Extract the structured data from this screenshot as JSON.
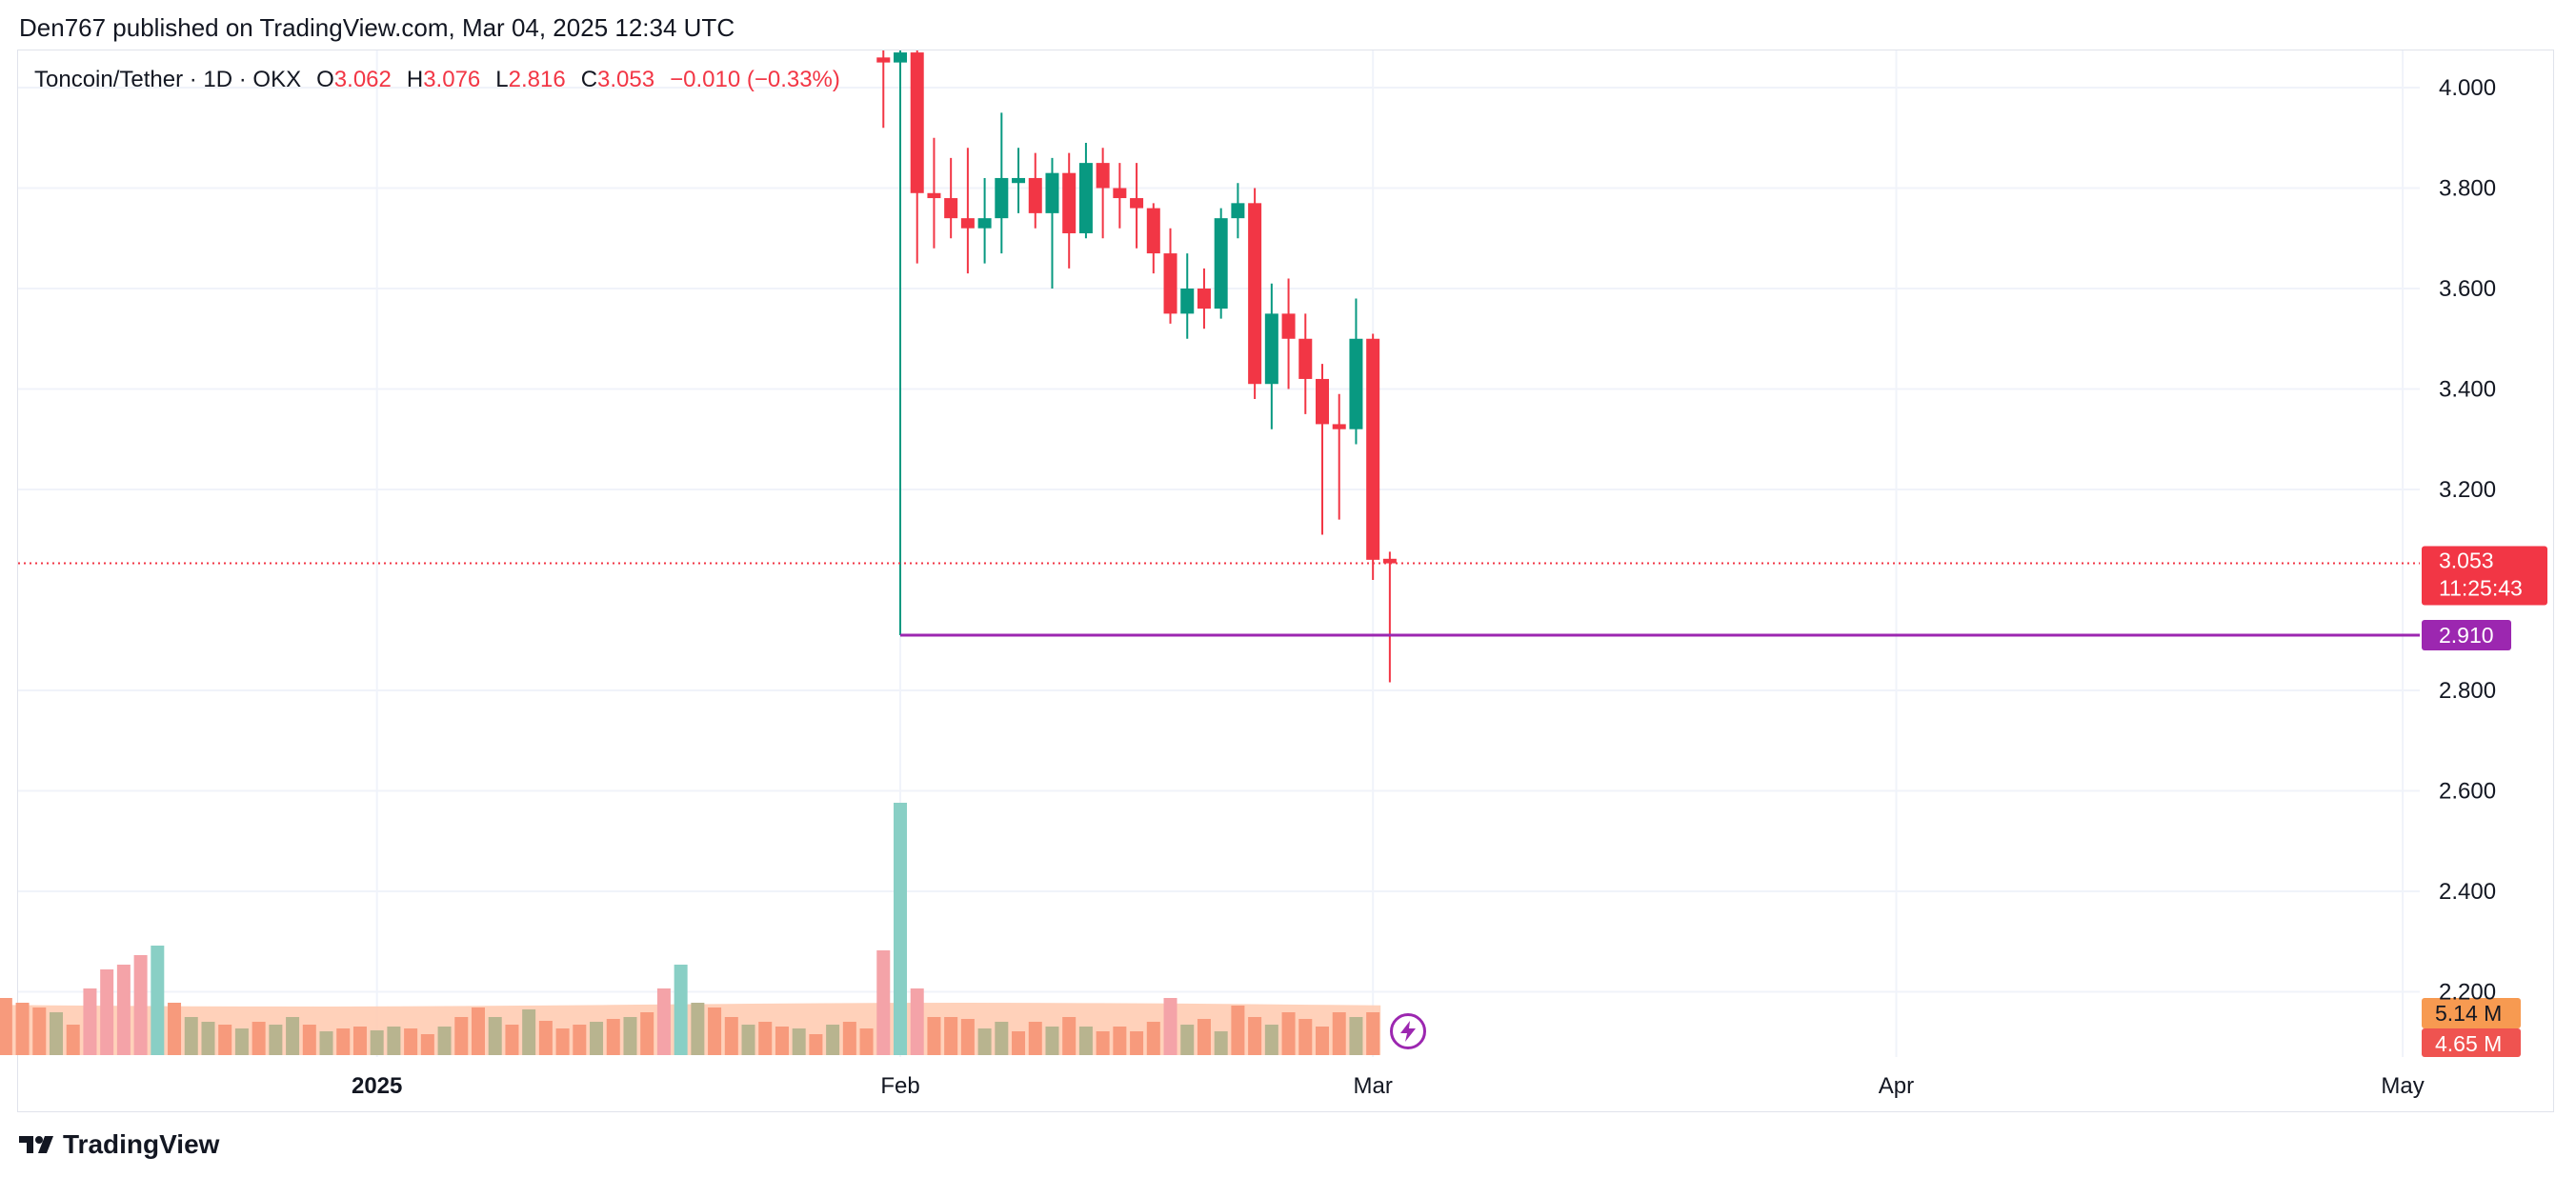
{
  "header": {
    "published_by": "Den767 published on TradingView.com, Mar 04, 2025 12:34 UTC"
  },
  "legend": {
    "symbol": "Toncoin/Tether · 1D · OKX",
    "open_label": "O",
    "open_value": "3.062",
    "high_label": "H",
    "high_value": "3.076",
    "low_label": "L",
    "low_value": "2.816",
    "close_label": "C",
    "close_value": "3.053",
    "change": "−0.010 (−0.33%)"
  },
  "footer": {
    "brand": "TradingView"
  },
  "colors": {
    "up": "#089981",
    "down": "#f23645",
    "level_line": "#9c27b0",
    "volume_ma": "#ffccb3",
    "grid": "#f0f3fa"
  },
  "chart_data": {
    "type": "candlestick",
    "title": "Toncoin/Tether · 1D · OKX",
    "ylim": [
      2.1,
      4.07
    ],
    "y_ticks": [
      "4.000",
      "3.800",
      "3.600",
      "3.400",
      "3.200",
      "2.800",
      "2.600",
      "2.400",
      "2.200"
    ],
    "x_ticks": [
      {
        "label": "2025",
        "date": "2025-01-01"
      },
      {
        "label": "Feb",
        "date": "2025-02-01"
      },
      {
        "label": "Mar",
        "date": "2025-03-01"
      },
      {
        "label": "Apr",
        "date": "2025-04-01"
      },
      {
        "label": "May",
        "date": "2025-05-01"
      }
    ],
    "x_range": [
      "2024-12-09",
      "2025-05-10"
    ],
    "candles": [
      {
        "date": "2025-01-31",
        "open": 4.06,
        "high": 4.12,
        "low": 3.92,
        "close": 4.05
      },
      {
        "date": "2025-02-01",
        "open": 4.05,
        "high": 4.12,
        "low": 2.91,
        "close": 4.07
      },
      {
        "date": "2025-02-02",
        "open": 4.07,
        "high": 4.12,
        "low": 3.65,
        "close": 3.79
      },
      {
        "date": "2025-02-03",
        "open": 3.79,
        "high": 3.9,
        "low": 3.68,
        "close": 3.78
      },
      {
        "date": "2025-02-04",
        "open": 3.78,
        "high": 3.86,
        "low": 3.7,
        "close": 3.74
      },
      {
        "date": "2025-02-05",
        "open": 3.74,
        "high": 3.88,
        "low": 3.63,
        "close": 3.72
      },
      {
        "date": "2025-02-06",
        "open": 3.72,
        "high": 3.82,
        "low": 3.65,
        "close": 3.74
      },
      {
        "date": "2025-02-07",
        "open": 3.74,
        "high": 3.95,
        "low": 3.67,
        "close": 3.82
      },
      {
        "date": "2025-02-08",
        "open": 3.81,
        "high": 3.88,
        "low": 3.75,
        "close": 3.82
      },
      {
        "date": "2025-02-09",
        "open": 3.82,
        "high": 3.87,
        "low": 3.72,
        "close": 3.75
      },
      {
        "date": "2025-02-10",
        "open": 3.75,
        "high": 3.86,
        "low": 3.6,
        "close": 3.83
      },
      {
        "date": "2025-02-11",
        "open": 3.83,
        "high": 3.87,
        "low": 3.64,
        "close": 3.71
      },
      {
        "date": "2025-02-12",
        "open": 3.71,
        "high": 3.89,
        "low": 3.7,
        "close": 3.85
      },
      {
        "date": "2025-02-13",
        "open": 3.85,
        "high": 3.88,
        "low": 3.7,
        "close": 3.8
      },
      {
        "date": "2025-02-14",
        "open": 3.8,
        "high": 3.85,
        "low": 3.72,
        "close": 3.78
      },
      {
        "date": "2025-02-15",
        "open": 3.78,
        "high": 3.85,
        "low": 3.68,
        "close": 3.76
      },
      {
        "date": "2025-02-16",
        "open": 3.76,
        "high": 3.77,
        "low": 3.63,
        "close": 3.67
      },
      {
        "date": "2025-02-17",
        "open": 3.67,
        "high": 3.72,
        "low": 3.53,
        "close": 3.55
      },
      {
        "date": "2025-02-18",
        "open": 3.55,
        "high": 3.67,
        "low": 3.5,
        "close": 3.6
      },
      {
        "date": "2025-02-19",
        "open": 3.6,
        "high": 3.64,
        "low": 3.52,
        "close": 3.56
      },
      {
        "date": "2025-02-20",
        "open": 3.56,
        "high": 3.76,
        "low": 3.54,
        "close": 3.74
      },
      {
        "date": "2025-02-21",
        "open": 3.74,
        "high": 3.81,
        "low": 3.7,
        "close": 3.77
      },
      {
        "date": "2025-02-22",
        "open": 3.77,
        "high": 3.8,
        "low": 3.38,
        "close": 3.41
      },
      {
        "date": "2025-02-23",
        "open": 3.41,
        "high": 3.61,
        "low": 3.32,
        "close": 3.55
      },
      {
        "date": "2025-02-24",
        "open": 3.55,
        "high": 3.62,
        "low": 3.4,
        "close": 3.5
      },
      {
        "date": "2025-02-25",
        "open": 3.5,
        "high": 3.55,
        "low": 3.35,
        "close": 3.42
      },
      {
        "date": "2025-02-26",
        "open": 3.42,
        "high": 3.45,
        "low": 3.11,
        "close": 3.33
      },
      {
        "date": "2025-02-27",
        "open": 3.33,
        "high": 3.39,
        "low": 3.14,
        "close": 3.32
      },
      {
        "date": "2025-02-28",
        "open": 3.32,
        "high": 3.58,
        "low": 3.29,
        "close": 3.5
      },
      {
        "date": "2025-03-01",
        "open": 3.5,
        "high": 3.51,
        "low": 3.02,
        "close": 3.06
      },
      {
        "date": "2025-03-02",
        "open": 3.062,
        "high": 3.076,
        "low": 2.816,
        "close": 3.053
      }
    ],
    "volume_bars": [
      {
        "date": "2024-12-09",
        "dir": "up",
        "hl": true
      },
      {
        "date": "2024-12-10",
        "dir": "down",
        "hl": false
      },
      {
        "date": "2024-12-11",
        "dir": "down",
        "hl": false
      },
      {
        "date": "2024-12-12",
        "dir": "down",
        "hl": false
      },
      {
        "date": "2024-12-13",
        "dir": "up",
        "hl": false
      },
      {
        "date": "2024-12-14",
        "dir": "down",
        "hl": false
      },
      {
        "date": "2024-12-15",
        "dir": "down",
        "hl": true
      },
      {
        "date": "2024-12-16",
        "dir": "down",
        "hl": true
      },
      {
        "date": "2024-12-17",
        "dir": "down",
        "hl": true
      },
      {
        "date": "2024-12-18",
        "dir": "down",
        "hl": true
      },
      {
        "date": "2024-12-19",
        "dir": "up",
        "hl": true
      },
      {
        "date": "2024-12-20",
        "dir": "down",
        "hl": false
      },
      {
        "date": "2024-12-21",
        "dir": "up",
        "hl": false
      },
      {
        "date": "2024-12-22",
        "dir": "up",
        "hl": false
      },
      {
        "date": "2024-12-23",
        "dir": "down",
        "hl": false
      },
      {
        "date": "2024-12-24",
        "dir": "up",
        "hl": false
      },
      {
        "date": "2024-12-25",
        "dir": "down",
        "hl": false
      },
      {
        "date": "2024-12-26",
        "dir": "up",
        "hl": false
      },
      {
        "date": "2024-12-27",
        "dir": "up",
        "hl": false
      },
      {
        "date": "2024-12-28",
        "dir": "down",
        "hl": false
      },
      {
        "date": "2024-12-29",
        "dir": "up",
        "hl": false
      },
      {
        "date": "2024-12-30",
        "dir": "down",
        "hl": false
      },
      {
        "date": "2024-12-31",
        "dir": "down",
        "hl": false
      },
      {
        "date": "2025-01-01",
        "dir": "up",
        "hl": false
      },
      {
        "date": "2025-01-02",
        "dir": "up",
        "hl": false
      },
      {
        "date": "2025-01-03",
        "dir": "down",
        "hl": false
      },
      {
        "date": "2025-01-04",
        "dir": "down",
        "hl": false
      },
      {
        "date": "2025-01-05",
        "dir": "up",
        "hl": false
      },
      {
        "date": "2025-01-06",
        "dir": "down",
        "hl": false
      },
      {
        "date": "2025-01-07",
        "dir": "down",
        "hl": false
      },
      {
        "date": "2025-01-08",
        "dir": "up",
        "hl": false
      },
      {
        "date": "2025-01-09",
        "dir": "down",
        "hl": false
      },
      {
        "date": "2025-01-10",
        "dir": "up",
        "hl": false
      },
      {
        "date": "2025-01-11",
        "dir": "down",
        "hl": false
      },
      {
        "date": "2025-01-12",
        "dir": "down",
        "hl": false
      },
      {
        "date": "2025-01-13",
        "dir": "down",
        "hl": false
      },
      {
        "date": "2025-01-14",
        "dir": "up",
        "hl": false
      },
      {
        "date": "2025-01-15",
        "dir": "down",
        "hl": false
      },
      {
        "date": "2025-01-16",
        "dir": "up",
        "hl": false
      },
      {
        "date": "2025-01-17",
        "dir": "down",
        "hl": false
      },
      {
        "date": "2025-01-18",
        "dir": "down",
        "hl": true
      },
      {
        "date": "2025-01-19",
        "dir": "up",
        "hl": true
      },
      {
        "date": "2025-01-20",
        "dir": "up",
        "hl": false
      },
      {
        "date": "2025-01-21",
        "dir": "down",
        "hl": false
      },
      {
        "date": "2025-01-22",
        "dir": "down",
        "hl": false
      },
      {
        "date": "2025-01-23",
        "dir": "up",
        "hl": false
      },
      {
        "date": "2025-01-24",
        "dir": "down",
        "hl": false
      },
      {
        "date": "2025-01-25",
        "dir": "down",
        "hl": false
      },
      {
        "date": "2025-01-26",
        "dir": "up",
        "hl": false
      },
      {
        "date": "2025-01-27",
        "dir": "down",
        "hl": false
      },
      {
        "date": "2025-01-28",
        "dir": "up",
        "hl": false
      },
      {
        "date": "2025-01-29",
        "dir": "down",
        "hl": false
      },
      {
        "date": "2025-01-30",
        "dir": "down",
        "hl": false
      },
      {
        "date": "2025-01-31",
        "dir": "down",
        "hl": true
      },
      {
        "date": "2025-02-01",
        "dir": "up",
        "hl": true
      },
      {
        "date": "2025-02-02",
        "dir": "down",
        "hl": true
      },
      {
        "date": "2025-02-03",
        "dir": "down",
        "hl": false
      },
      {
        "date": "2025-02-04",
        "dir": "down",
        "hl": false
      },
      {
        "date": "2025-02-05",
        "dir": "down",
        "hl": false
      },
      {
        "date": "2025-02-06",
        "dir": "up",
        "hl": false
      },
      {
        "date": "2025-02-07",
        "dir": "up",
        "hl": false
      },
      {
        "date": "2025-02-08",
        "dir": "down",
        "hl": false
      },
      {
        "date": "2025-02-09",
        "dir": "down",
        "hl": false
      },
      {
        "date": "2025-02-10",
        "dir": "up",
        "hl": false
      },
      {
        "date": "2025-02-11",
        "dir": "down",
        "hl": false
      },
      {
        "date": "2025-02-12",
        "dir": "up",
        "hl": false
      },
      {
        "date": "2025-02-13",
        "dir": "down",
        "hl": false
      },
      {
        "date": "2025-02-14",
        "dir": "down",
        "hl": false
      },
      {
        "date": "2025-02-15",
        "dir": "down",
        "hl": false
      },
      {
        "date": "2025-02-16",
        "dir": "down",
        "hl": false
      },
      {
        "date": "2025-02-17",
        "dir": "down",
        "hl": true
      },
      {
        "date": "2025-02-18",
        "dir": "up",
        "hl": false
      },
      {
        "date": "2025-02-19",
        "dir": "down",
        "hl": false
      },
      {
        "date": "2025-02-20",
        "dir": "up",
        "hl": false
      },
      {
        "date": "2025-02-21",
        "dir": "down",
        "hl": false
      },
      {
        "date": "2025-02-22",
        "dir": "down",
        "hl": false
      },
      {
        "date": "2025-02-23",
        "dir": "up",
        "hl": false
      },
      {
        "date": "2025-02-24",
        "dir": "down",
        "hl": false
      },
      {
        "date": "2025-02-25",
        "dir": "down",
        "hl": false
      },
      {
        "date": "2025-02-26",
        "dir": "down",
        "hl": false
      },
      {
        "date": "2025-02-27",
        "dir": "down",
        "hl": false
      },
      {
        "date": "2025-02-28",
        "dir": "up",
        "hl": false
      },
      {
        "date": "2025-03-01",
        "dir": "down",
        "hl": false
      }
    ],
    "price_line": {
      "value": 3.053,
      "label": "3.053",
      "countdown": "11:25:43"
    },
    "level_line": {
      "value": 2.91,
      "label": "2.910",
      "from_date": "2025-02-01"
    },
    "volume_labels": {
      "ma_value": "5.14 M",
      "volume_value": "4.65 M"
    }
  }
}
